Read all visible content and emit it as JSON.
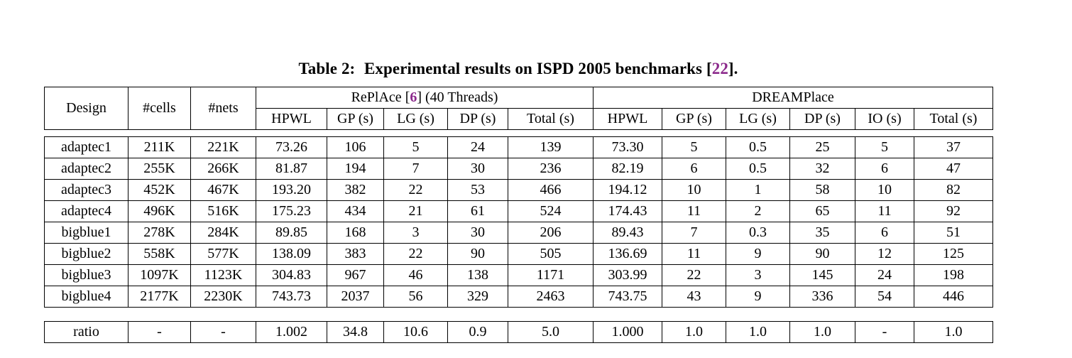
{
  "caption": {
    "label": "Table 2:",
    "text": "Experimental results on ISPD 2005 benchmarks",
    "cite_open": "[",
    "cite": "22",
    "cite_close": "]."
  },
  "colors": {
    "citation": "#8C2A8C",
    "text": "#000000",
    "border": "#000000",
    "background": "#ffffff"
  },
  "table": {
    "header": {
      "design": "Design",
      "cells": "#cells",
      "nets": "#nets",
      "replace_pre": "RePlAce [",
      "replace_cite": "6",
      "replace_post": "] (40 Threads)",
      "dreamplace": "DREAMPlace",
      "replace_cols": [
        "HPWL",
        "GP (s)",
        "LG (s)",
        "DP (s)",
        "Total (s)"
      ],
      "dreamplace_cols": [
        "HPWL",
        "GP (s)",
        "LG (s)",
        "DP (s)",
        "IO (s)",
        "Total (s)"
      ]
    },
    "rows": [
      {
        "design": "adaptec1",
        "cells": "211K",
        "nets": "221K",
        "replace": [
          "73.26",
          "106",
          "5",
          "24",
          "139"
        ],
        "dreamplace": [
          "73.30",
          "5",
          "0.5",
          "25",
          "5",
          "37"
        ]
      },
      {
        "design": "adaptec2",
        "cells": "255K",
        "nets": "266K",
        "replace": [
          "81.87",
          "194",
          "7",
          "30",
          "236"
        ],
        "dreamplace": [
          "82.19",
          "6",
          "0.5",
          "32",
          "6",
          "47"
        ]
      },
      {
        "design": "adaptec3",
        "cells": "452K",
        "nets": "467K",
        "replace": [
          "193.20",
          "382",
          "22",
          "53",
          "466"
        ],
        "dreamplace": [
          "194.12",
          "10",
          "1",
          "58",
          "10",
          "82"
        ]
      },
      {
        "design": "adaptec4",
        "cells": "496K",
        "nets": "516K",
        "replace": [
          "175.23",
          "434",
          "21",
          "61",
          "524"
        ],
        "dreamplace": [
          "174.43",
          "11",
          "2",
          "65",
          "11",
          "92"
        ]
      },
      {
        "design": "bigblue1",
        "cells": "278K",
        "nets": "284K",
        "replace": [
          "89.85",
          "168",
          "3",
          "30",
          "206"
        ],
        "dreamplace": [
          "89.43",
          "7",
          "0.3",
          "35",
          "6",
          "51"
        ]
      },
      {
        "design": "bigblue2",
        "cells": "558K",
        "nets": "577K",
        "replace": [
          "138.09",
          "383",
          "22",
          "90",
          "505"
        ],
        "dreamplace": [
          "136.69",
          "11",
          "9",
          "90",
          "12",
          "125"
        ]
      },
      {
        "design": "bigblue3",
        "cells": "1097K",
        "nets": "1123K",
        "replace": [
          "304.83",
          "967",
          "46",
          "138",
          "1171"
        ],
        "dreamplace": [
          "303.99",
          "22",
          "3",
          "145",
          "24",
          "198"
        ]
      },
      {
        "design": "bigblue4",
        "cells": "2177K",
        "nets": "2230K",
        "replace": [
          "743.73",
          "2037",
          "56",
          "329",
          "2463"
        ],
        "dreamplace": [
          "743.75",
          "43",
          "9",
          "336",
          "54",
          "446"
        ]
      }
    ],
    "ratio": {
      "design": "ratio",
      "cells": "-",
      "nets": "-",
      "replace": [
        "1.002",
        "34.8",
        "10.6",
        "0.9",
        "5.0"
      ],
      "dreamplace": [
        "1.000",
        "1.0",
        "1.0",
        "1.0",
        "-",
        "1.0"
      ]
    }
  }
}
